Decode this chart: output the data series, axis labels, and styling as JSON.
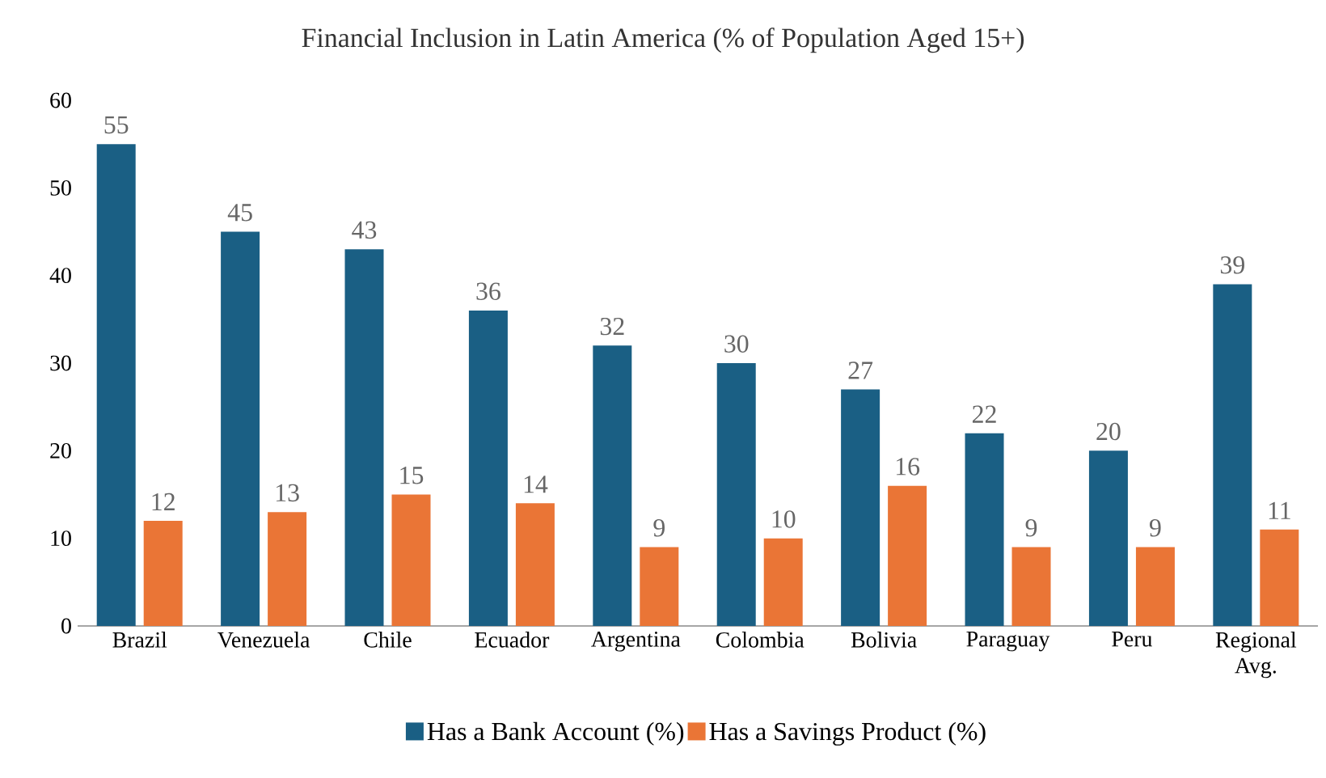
{
  "chart_data": {
    "type": "bar",
    "title": "Financial Inclusion in Latin America (% of Population Aged 15+)",
    "categories": [
      "Brazil",
      "Venezuela",
      "Chile",
      "Ecuador",
      "Argentina",
      "Colombia",
      "Bolivia",
      "Paraguay",
      "Peru",
      "Regional Avg."
    ],
    "series": [
      {
        "name": "Has a Bank Account (%)",
        "color": "#1a5f84",
        "values": [
          55,
          45,
          43,
          36,
          32,
          30,
          27,
          22,
          20,
          39
        ]
      },
      {
        "name": "Has a Savings Product (%)",
        "color": "#ea7536",
        "values": [
          12,
          13,
          15,
          14,
          9,
          10,
          16,
          9,
          9,
          11
        ]
      }
    ],
    "ylim": [
      0,
      60
    ],
    "yticks": [
      0,
      10,
      20,
      30,
      40,
      50,
      60
    ],
    "data_labels": true,
    "legend": "bottom",
    "grid": false
  }
}
